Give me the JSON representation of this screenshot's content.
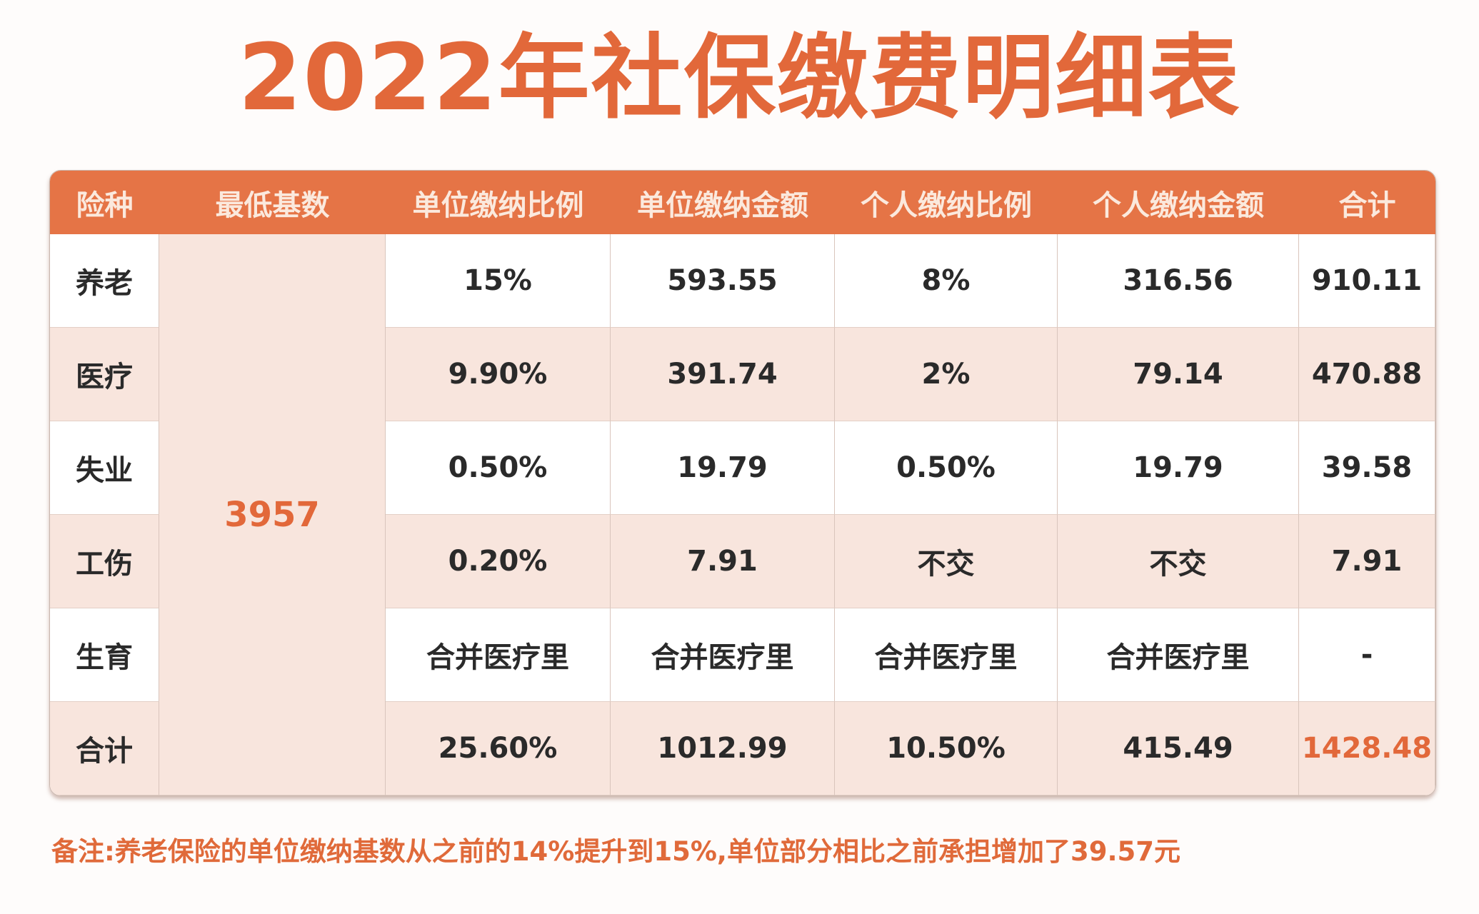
{
  "title": "2022年社保缴费明细表",
  "table": {
    "headers": [
      "险种",
      "最低基数",
      "单位缴纳比例",
      "单位缴纳金额",
      "个人缴纳比例",
      "个人缴纳金额",
      "合计"
    ],
    "base": "3957",
    "rows": [
      [
        "养老",
        "15%",
        "593.55",
        "8%",
        "316.56",
        "910.11"
      ],
      [
        "医疗",
        "9.90%",
        "391.74",
        "2%",
        "79.14",
        "470.88"
      ],
      [
        "失业",
        "0.50%",
        "19.79",
        "0.50%",
        "19.79",
        "39.58"
      ],
      [
        "工伤",
        "0.20%",
        "7.91",
        "不交",
        "不交",
        "7.91"
      ],
      [
        "生育",
        "合并医疗里",
        "合并医疗里",
        "合并医疗里",
        "合并医疗里",
        "-"
      ],
      [
        "合计",
        "25.60%",
        "1012.99",
        "10.50%",
        "415.49",
        "1428.48"
      ]
    ]
  },
  "note": "备注:养老保险的单位缴纳基数从之前的14%提升到15%,单位部分相比之前承担增加了39.57元",
  "colors": {
    "accent": "#e2683a",
    "header_bg": "#e57446",
    "row_pink": "#f8e5dd"
  }
}
